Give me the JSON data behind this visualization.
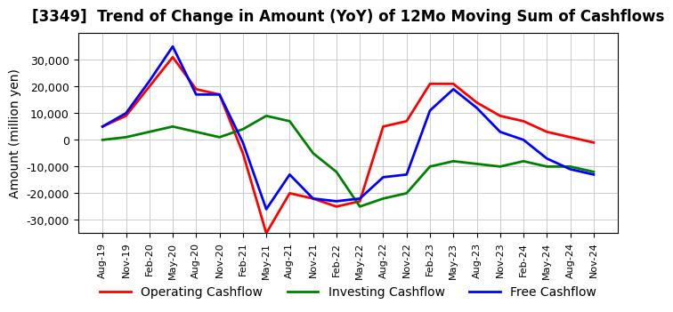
{
  "title": "[3349]  Trend of Change in Amount (YoY) of 12Mo Moving Sum of Cashflows",
  "ylabel": "Amount (million yen)",
  "ylim": [
    -35000,
    40000
  ],
  "yticks": [
    -30000,
    -20000,
    -10000,
    0,
    10000,
    20000,
    30000
  ],
  "x_labels": [
    "Aug-19",
    "Nov-19",
    "Feb-20",
    "May-20",
    "Aug-20",
    "Nov-20",
    "Feb-21",
    "May-21",
    "Aug-21",
    "Nov-21",
    "Feb-22",
    "May-22",
    "Aug-22",
    "Nov-22",
    "Feb-23",
    "May-23",
    "Aug-23",
    "Nov-23",
    "Feb-24",
    "May-24",
    "Aug-24",
    "Nov-24"
  ],
  "operating": [
    5000,
    9000,
    20000,
    31000,
    19000,
    17000,
    -5000,
    -35000,
    -20000,
    -22000,
    -25000,
    -23000,
    5000,
    7000,
    21000,
    21000,
    14000,
    9000,
    7000,
    3000,
    1000,
    -1000
  ],
  "investing": [
    0,
    1000,
    3000,
    5000,
    3000,
    1000,
    4000,
    9000,
    7000,
    -5000,
    -12000,
    -25000,
    -22000,
    -20000,
    -10000,
    -8000,
    -9000,
    -10000,
    -8000,
    -10000,
    -10000,
    -12000
  ],
  "free": [
    5000,
    10000,
    22000,
    35000,
    17000,
    17000,
    -1000,
    -26000,
    -13000,
    -22000,
    -23000,
    -22000,
    -14000,
    -13000,
    11000,
    19000,
    12000,
    3000,
    0,
    -7000,
    -11000,
    -13000
  ],
  "operating_color": "#ff0000",
  "investing_color": "#008000",
  "free_color": "#0000ff",
  "background_color": "#ffffff",
  "grid_color": "#cccccc"
}
